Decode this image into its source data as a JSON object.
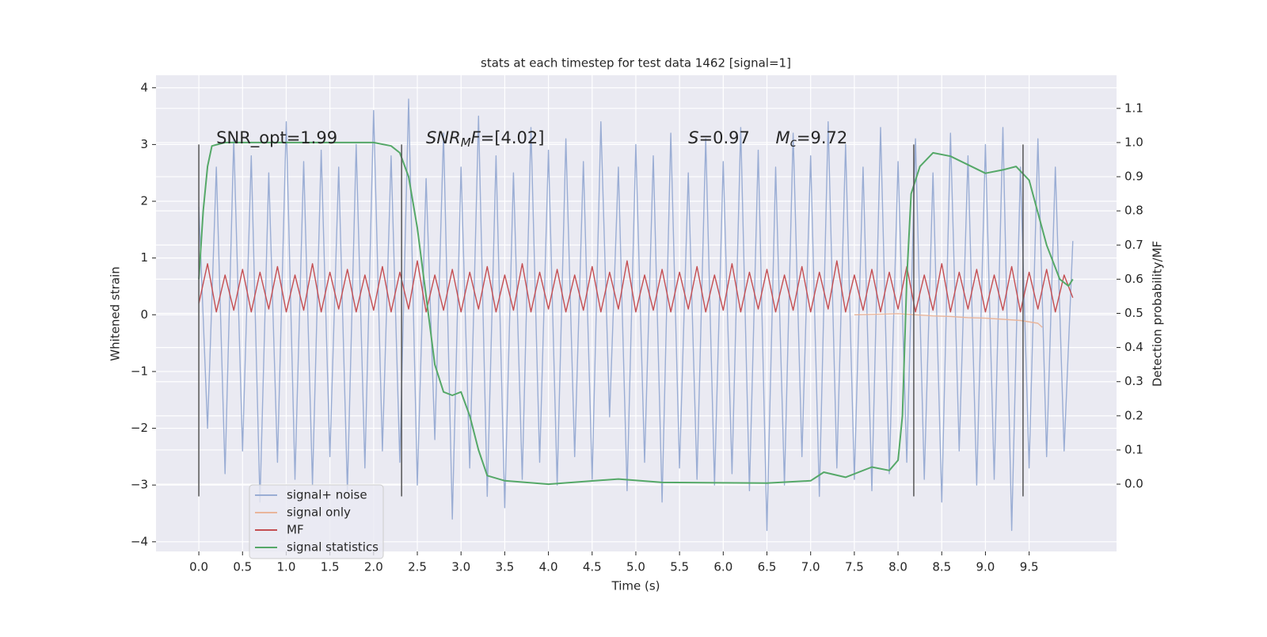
{
  "chart_data": {
    "type": "line",
    "title": "stats at each timestep for test data 1462 [signal=1]",
    "xlabel": "Time (s)",
    "ylabel": "Whitened strain",
    "y2label": "Detection probability/MF",
    "xlim": [
      -0.49,
      10.5
    ],
    "ylim": [
      -4.17,
      4.22
    ],
    "y2lim": [
      -0.197,
      1.197
    ],
    "xticks": [
      {
        "value": 0,
        "label": "0.0"
      },
      0.5,
      {
        "value": 1,
        "label": "1.0"
      },
      1.5,
      {
        "value": 2,
        "label": "2.0"
      },
      2.5,
      {
        "value": 3,
        "label": "3.0"
      },
      3.5,
      {
        "value": 4,
        "label": "4.0"
      },
      4.5,
      {
        "value": 5,
        "label": "5.0"
      },
      5.5,
      {
        "value": 6,
        "label": "6.0"
      },
      6.5,
      {
        "value": 7,
        "label": "7.0"
      },
      7.5,
      {
        "value": 8,
        "label": "8.0"
      },
      8.5,
      {
        "value": 9,
        "label": "9.0"
      },
      9.5
    ],
    "yticks": [
      {
        "value": -4,
        "label": "−4"
      },
      {
        "value": -3,
        "label": "−3"
      },
      {
        "value": -2,
        "label": "−2"
      },
      {
        "value": -1,
        "label": "−1"
      },
      0,
      1,
      2,
      3,
      4
    ],
    "y2ticks": [
      {
        "value": 0,
        "label": "0.0"
      },
      0.1,
      0.2,
      0.3,
      0.4,
      0.5,
      0.6,
      0.7,
      0.8,
      0.9,
      {
        "value": 1,
        "label": "1.0"
      },
      1.1
    ],
    "grid": true,
    "x": [
      0.0,
      0.1,
      0.2,
      0.3,
      0.4,
      0.5,
      0.6,
      0.7,
      0.8,
      0.9,
      1.0,
      1.1,
      1.2,
      1.3,
      1.4,
      1.5,
      1.6,
      1.7,
      1.8,
      1.9,
      2.0,
      2.1,
      2.2,
      2.3,
      2.4,
      2.5,
      2.6,
      2.7,
      2.8,
      2.9,
      3.0,
      3.1,
      3.2,
      3.3,
      3.4,
      3.5,
      3.6,
      3.7,
      3.8,
      3.9,
      4.0,
      4.1,
      4.2,
      4.3,
      4.4,
      4.5,
      4.6,
      4.7,
      4.8,
      4.9,
      5.0,
      5.1,
      5.2,
      5.3,
      5.4,
      5.5,
      5.6,
      5.7,
      5.8,
      5.9,
      6.0,
      6.1,
      6.2,
      6.3,
      6.4,
      6.5,
      6.6,
      6.7,
      6.8,
      6.9,
      7.0,
      7.1,
      7.2,
      7.3,
      7.4,
      7.5,
      7.6,
      7.7,
      7.8,
      7.9,
      8.0,
      8.1,
      8.2,
      8.3,
      8.4,
      8.5,
      8.6,
      8.7,
      8.8,
      8.9,
      9.0,
      9.1,
      9.2,
      9.3,
      9.4,
      9.5,
      9.6,
      9.7,
      9.8,
      9.9,
      10.0
    ],
    "series": [
      {
        "name": "signal+ noise",
        "color": "#9aadd4",
        "values": [
          1.9,
          -2.0,
          2.6,
          -2.8,
          3.1,
          -2.4,
          2.8,
          -3.3,
          2.5,
          -2.6,
          3.4,
          -2.9,
          2.7,
          -3.0,
          2.9,
          -2.5,
          2.6,
          -3.1,
          3.0,
          -2.7,
          3.6,
          -2.4,
          2.8,
          -2.6,
          3.8,
          -3.0,
          2.4,
          -2.2,
          3.2,
          -3.6,
          2.6,
          -2.7,
          3.5,
          -3.2,
          2.8,
          -3.4,
          2.5,
          -2.9,
          3.3,
          -2.6,
          2.9,
          -3.0,
          3.1,
          -2.5,
          2.7,
          -2.9,
          3.4,
          -1.8,
          2.6,
          -3.1,
          3.0,
          -2.6,
          2.8,
          -3.3,
          3.2,
          -2.7,
          2.5,
          -2.9,
          3.1,
          -3.0,
          2.7,
          -2.8,
          3.3,
          -3.1,
          2.9,
          -3.8,
          2.6,
          -3.0,
          3.2,
          -2.5,
          2.8,
          -3.2,
          3.4,
          -2.7,
          3.0,
          -2.9,
          2.6,
          -3.1,
          3.3,
          -2.8,
          2.7,
          -2.6,
          3.1,
          -2.9,
          2.5,
          -3.3,
          3.2,
          -2.4,
          2.8,
          -3.0,
          3.0,
          -2.9,
          3.3,
          -3.8,
          2.6,
          -2.7,
          3.1,
          -2.5,
          2.6,
          -2.4,
          1.3
        ]
      },
      {
        "name": "signal only",
        "color": "#e9b59b",
        "x": [
          7.5,
          7.8,
          8.0,
          8.2,
          8.4,
          8.6,
          8.8,
          9.0,
          9.2,
          9.4,
          9.6,
          9.65
        ],
        "values": [
          0.0,
          0.01,
          0.02,
          0.0,
          -0.02,
          -0.03,
          -0.05,
          -0.06,
          -0.08,
          -0.1,
          -0.15,
          -0.22
        ]
      },
      {
        "name": "MF",
        "color": "#c44e52",
        "values": [
          0.2,
          0.9,
          0.05,
          0.7,
          0.08,
          0.8,
          0.05,
          0.75,
          0.1,
          0.85,
          0.05,
          0.7,
          0.08,
          0.9,
          0.05,
          0.75,
          0.1,
          0.8,
          0.05,
          0.7,
          0.08,
          0.85,
          0.05,
          0.75,
          0.1,
          0.95,
          0.05,
          0.7,
          0.08,
          0.8,
          0.05,
          0.75,
          0.1,
          0.85,
          0.05,
          0.7,
          0.08,
          0.9,
          0.05,
          0.75,
          0.1,
          0.8,
          0.05,
          0.7,
          0.08,
          0.85,
          0.05,
          0.75,
          0.1,
          0.95,
          0.05,
          0.7,
          0.08,
          0.8,
          0.05,
          0.75,
          0.1,
          0.85,
          0.05,
          0.7,
          0.08,
          0.9,
          0.05,
          0.75,
          0.1,
          0.8,
          0.05,
          0.7,
          0.08,
          0.85,
          0.05,
          0.75,
          0.1,
          0.95,
          0.05,
          0.7,
          0.08,
          0.8,
          0.05,
          0.75,
          0.1,
          0.85,
          0.05,
          0.7,
          0.08,
          0.9,
          0.05,
          0.75,
          0.1,
          0.8,
          0.05,
          0.7,
          0.08,
          0.85,
          0.05,
          0.75,
          0.1,
          0.8,
          0.05,
          0.7,
          0.3
        ]
      },
      {
        "name": "signal statistics",
        "color": "#55a868",
        "axis": "y2",
        "x": [
          0,
          0.05,
          0.1,
          0.15,
          0.3,
          1.0,
          2.0,
          2.2,
          2.3,
          2.4,
          2.5,
          2.6,
          2.7,
          2.8,
          2.9,
          3.0,
          3.1,
          3.2,
          3.3,
          3.5,
          4.0,
          4.8,
          5.3,
          6.5,
          7.0,
          7.15,
          7.4,
          7.7,
          7.9,
          8.0,
          8.05,
          8.1,
          8.15,
          8.25,
          8.4,
          8.6,
          9.0,
          9.2,
          9.35,
          9.5,
          9.7,
          9.85,
          9.95,
          10.0
        ],
        "values": [
          0.6,
          0.8,
          0.93,
          0.99,
          1.0,
          1.0,
          1.0,
          0.99,
          0.97,
          0.9,
          0.75,
          0.55,
          0.35,
          0.27,
          0.26,
          0.27,
          0.2,
          0.1,
          0.025,
          0.01,
          0.0,
          0.015,
          0.005,
          0.003,
          0.01,
          0.035,
          0.02,
          0.05,
          0.04,
          0.07,
          0.2,
          0.6,
          0.85,
          0.93,
          0.97,
          0.96,
          0.91,
          0.92,
          0.93,
          0.89,
          0.7,
          0.6,
          0.58,
          0.6
        ]
      }
    ],
    "vlines": {
      "x": [
        0,
        2.32,
        8.18,
        9.43
      ],
      "ymin": -3.2,
      "ymax": 3.0
    },
    "annotations": [
      {
        "x": 0.2,
        "y": 3.1,
        "parts": [
          {
            "text": "SNR_opt=1.99",
            "style": "plain"
          }
        ]
      },
      {
        "x": 2.6,
        "y": 3.1,
        "parts": [
          {
            "text": "SNR",
            "style": "italic"
          },
          {
            "text": "M",
            "style": "italic-sub"
          },
          {
            "text": "F",
            "style": "italic"
          },
          {
            "text": "=[4.02]",
            "style": "plain"
          }
        ]
      },
      {
        "x": 5.6,
        "y": 3.1,
        "parts": [
          {
            "text": "S",
            "style": "italic"
          },
          {
            "text": "=0.97",
            "style": "plain"
          }
        ]
      },
      {
        "x": 6.6,
        "y": 3.1,
        "parts": [
          {
            "text": "M",
            "style": "italic"
          },
          {
            "text": "c",
            "style": "italic-sub"
          },
          {
            "text": "=9.72",
            "style": "plain"
          }
        ]
      }
    ]
  }
}
